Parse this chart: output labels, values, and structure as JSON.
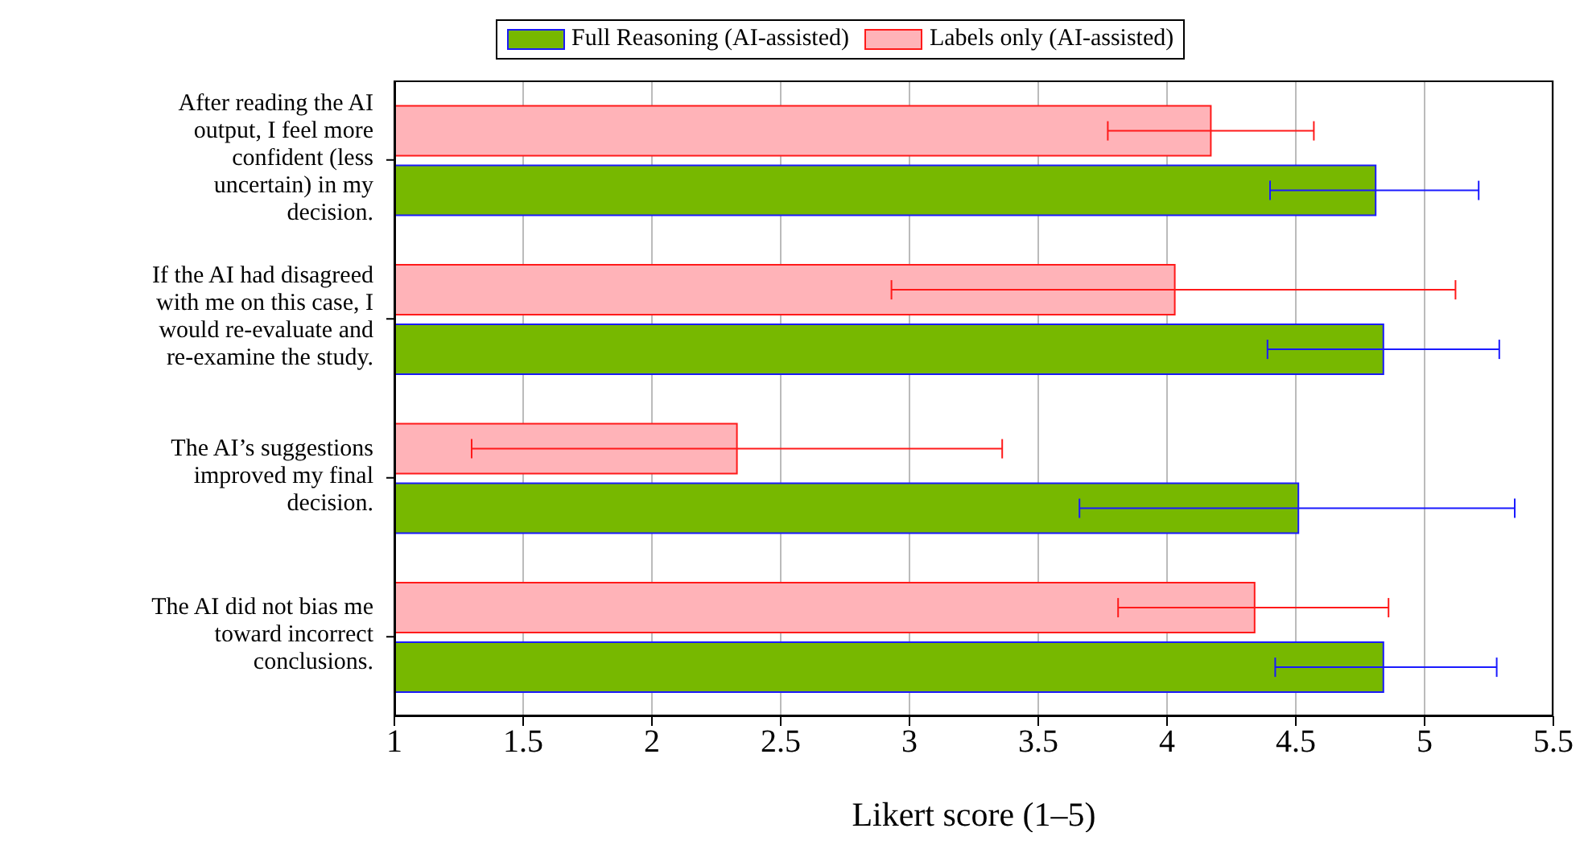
{
  "chart_data": {
    "type": "bar",
    "orientation": "horizontal",
    "xlabel": "Likert score (1–5)",
    "categories": [
      "After reading the AI output, I feel more confident (less uncertain) in my decision.",
      "If the AI had disagreed with me on this case, I would re-evaluate and re-examine the study.",
      "The AI’s suggestions improved my final decision.",
      "The AI did not bias me toward incorrect conclusions."
    ],
    "series": [
      {
        "name": "Full Reasoning (AI-assisted)",
        "color": "#77b800",
        "values": [
          4.81,
          4.84,
          4.51,
          4.84
        ],
        "errors": [
          [
            4.4,
            5.21
          ],
          [
            4.39,
            5.29
          ],
          [
            3.66,
            5.35
          ],
          [
            4.42,
            5.28
          ]
        ]
      },
      {
        "name": "Labels only (AI-assisted)",
        "color": "#ffb3b8",
        "values": [
          4.17,
          4.03,
          2.33,
          4.34
        ],
        "errors": [
          [
            3.77,
            4.57
          ],
          [
            2.93,
            5.12
          ],
          [
            1.3,
            3.36
          ],
          [
            3.81,
            4.86
          ]
        ]
      }
    ],
    "xlim": [
      1,
      5.5
    ],
    "xticks": [
      1,
      1.5,
      2,
      2.5,
      3,
      3.5,
      4,
      4.5,
      5,
      5.5
    ],
    "grid": "x",
    "legend": "top"
  }
}
